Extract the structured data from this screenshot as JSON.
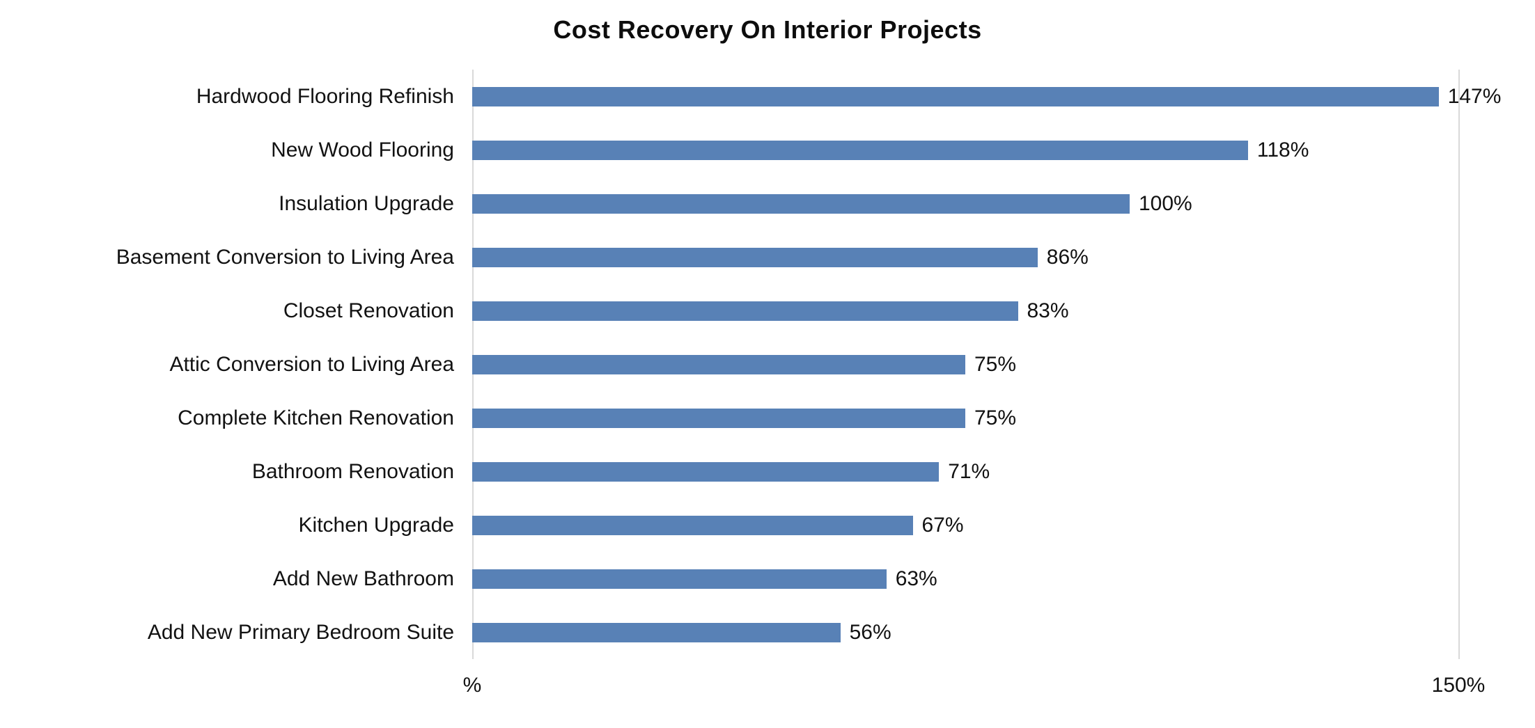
{
  "title": "Cost Recovery On Interior Projects",
  "colors": {
    "bar": "#5881b6",
    "gridline": "#d9d9d9",
    "text": "#121212"
  },
  "x_axis": {
    "min_tick_label": "%",
    "max_tick_label": "150%",
    "max_value": 150
  },
  "chart_data": {
    "type": "bar",
    "orientation": "horizontal",
    "title": "Cost Recovery On Interior Projects",
    "categories": [
      "Hardwood Flooring Refinish",
      "New Wood Flooring",
      "Insulation Upgrade",
      "Basement Conversion to Living Area",
      "Closet Renovation",
      "Attic Conversion to Living Area",
      "Complete Kitchen Renovation",
      "Bathroom Renovation",
      "Kitchen Upgrade",
      "Add New Bathroom",
      "Add New Primary Bedroom Suite"
    ],
    "values": [
      147,
      118,
      100,
      86,
      83,
      75,
      75,
      71,
      67,
      63,
      56
    ],
    "value_labels": [
      "147%",
      "118%",
      "100%",
      "86%",
      "83%",
      "75%",
      "75%",
      "71%",
      "67%",
      "63%",
      "56%"
    ],
    "xlabel": "",
    "ylabel": "",
    "xlim": [
      0,
      150
    ],
    "x_ticks": [
      "%",
      "150%"
    ],
    "grid": "vertical-lines-at-0-and-150-only",
    "legend": false,
    "bar_color": "#5881b6",
    "sort_order": "descending"
  }
}
